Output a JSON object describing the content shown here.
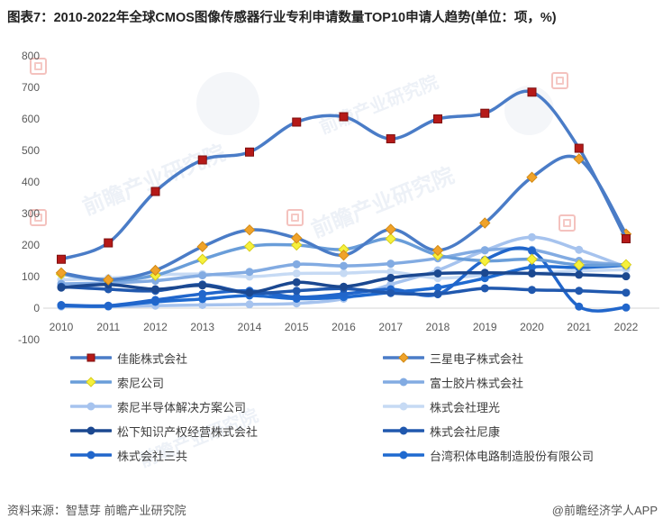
{
  "title": "图表7：2010-2022年全球CMOS图像传感器行业专利申请数量TOP10申请人趋势(单位：项，%)",
  "footer": {
    "source": "资料来源：智慧芽 前瞻产业研究院",
    "credit": "@前瞻经济学人APP"
  },
  "watermark_text": "前瞻产业研究院",
  "axis_color": "#595959",
  "zero_line_color": "#d6d6d6",
  "chart_data": {
    "type": "line",
    "title": "2010-2022年全球CMOS图像传感器行业专利申请数量TOP10申请人趋势",
    "xlabel": "",
    "ylabel": "",
    "x": [
      2010,
      2011,
      2012,
      2013,
      2014,
      2015,
      2016,
      2017,
      2018,
      2019,
      2020,
      2021,
      2022
    ],
    "ylim": [
      -100,
      800
    ],
    "yticks": [
      800,
      700,
      600,
      500,
      400,
      300,
      200,
      100,
      0,
      -100
    ],
    "grid": false,
    "legend_position": "bottom, two columns",
    "series": [
      {
        "name": "佳能株式会社",
        "marker": "square",
        "line_color": "#4a7cc7",
        "marker_color": "#b51918",
        "marker_edge": "#7e0f0e",
        "values": [
          155,
          207,
          370,
          470,
          495,
          590,
          607,
          537,
          600,
          618,
          685,
          507,
          220
        ]
      },
      {
        "name": "三星电子株式会社",
        "marker": "diamond",
        "line_color": "#4a7cc7",
        "marker_color": "#f0a32a",
        "marker_edge": "#d28a15",
        "values": [
          112,
          90,
          120,
          195,
          248,
          222,
          168,
          250,
          183,
          270,
          415,
          473,
          235
        ]
      },
      {
        "name": "索尼公司",
        "marker": "diamond",
        "line_color": "#699dd9",
        "marker_color": "#f6f13c",
        "marker_edge": "#d8cd1d",
        "values": [
          108,
          88,
          104,
          155,
          196,
          200,
          186,
          220,
          168,
          150,
          155,
          137,
          138
        ]
      },
      {
        "name": "富士胶片株式会社",
        "marker": "circle",
        "line_color": "#82abe2",
        "marker_color": "#82abe2",
        "marker_edge": "#82abe2",
        "values": [
          77,
          80,
          87,
          104,
          115,
          139,
          134,
          141,
          158,
          184,
          185,
          150,
          137
        ]
      },
      {
        "name": "索尼半导体解决方案公司",
        "marker": "circle",
        "line_color": "#a6c3ee",
        "marker_color": "#a6c3ee",
        "marker_edge": "#a6c3ee",
        "values": [
          5,
          5,
          8,
          10,
          12,
          15,
          30,
          75,
          120,
          183,
          225,
          185,
          130
        ]
      },
      {
        "name": "株式会社理光",
        "marker": "circle",
        "line_color": "#c6daf4",
        "marker_color": "#c6daf4",
        "marker_edge": "#c6daf4",
        "values": [
          90,
          95,
          105,
          108,
          100,
          110,
          111,
          115,
          95,
          105,
          110,
          118,
          122
        ]
      },
      {
        "name": "松下知识产权经营株式会社",
        "marker": "circle",
        "line_color": "#1b4890",
        "marker_color": "#1b4890",
        "marker_edge": "#1b4890",
        "values": [
          65,
          75,
          60,
          72,
          50,
          82,
          68,
          96,
          110,
          112,
          110,
          106,
          101
        ]
      },
      {
        "name": "株式会社尼康",
        "marker": "circle",
        "line_color": "#2058ae",
        "marker_color": "#2058ae",
        "marker_edge": "#2058ae",
        "values": [
          68,
          60,
          55,
          75,
          48,
          55,
          62,
          48,
          45,
          63,
          58,
          55,
          49
        ]
      },
      {
        "name": "株式会社三共",
        "marker": "circle",
        "line_color": "#2166cb",
        "marker_color": "#2166cb",
        "marker_edge": "#2166cb",
        "values": [
          10,
          8,
          26,
          45,
          55,
          35,
          45,
          60,
          44,
          153,
          182,
          5,
          2
        ]
      },
      {
        "name": "台湾积体电路制造股份有限公司",
        "marker": "circle",
        "line_color": "#1f6ad0",
        "marker_color": "#1f6ad0",
        "marker_edge": "#1f6ad0",
        "values": [
          8,
          6,
          20,
          29,
          40,
          30,
          35,
          50,
          65,
          95,
          130,
          129,
          136
        ]
      }
    ],
    "legend_left_column_series": [
      0,
      2,
      4,
      6,
      8
    ],
    "legend_right_column_series": [
      1,
      3,
      5,
      7,
      9
    ],
    "draw_order": [
      5,
      4,
      3,
      9,
      8,
      2,
      7,
      6,
      1,
      0
    ]
  }
}
